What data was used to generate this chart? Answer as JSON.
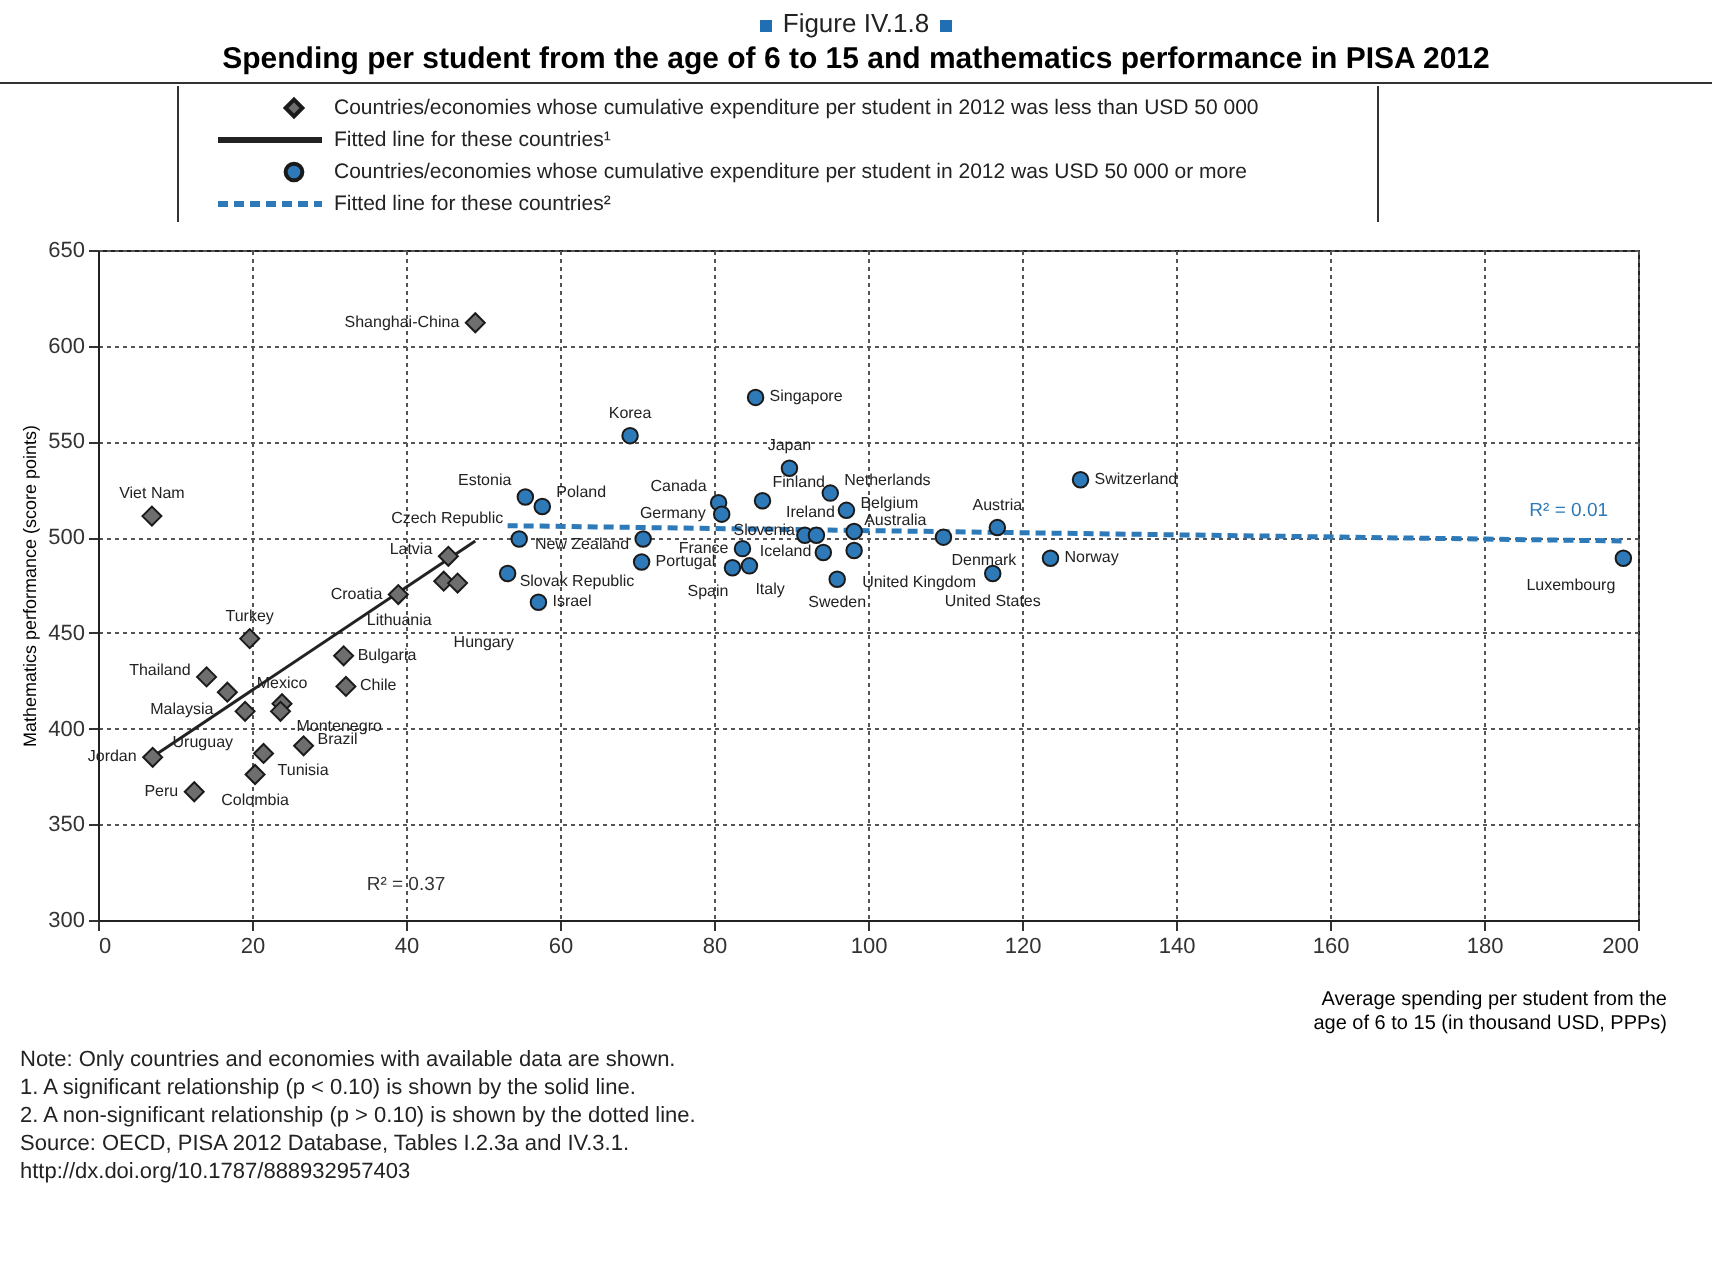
{
  "chart_data": {
    "type": "scatter",
    "subtitle": "Figure IV.1.8",
    "title": "Spending per student from the age of 6 to 15 and mathematics performance in PISA 2012",
    "xlabel": "Average spending per student from the age of 6 to 15 (in thousand USD, PPPs)",
    "ylabel": "Mathematics performance (score points)",
    "xlim": [
      0,
      200
    ],
    "xticks": [
      0,
      20,
      40,
      60,
      80,
      100,
      120,
      140,
      160,
      180,
      200
    ],
    "ylim": [
      300,
      650
    ],
    "yticks": [
      300,
      350,
      400,
      450,
      500,
      550,
      600,
      650
    ],
    "grid": true,
    "legend": "top",
    "series": [
      {
        "name": "Countries/economies whose cumulative expenditure per student in 2012 was less than USD 50 000",
        "marker": "diamond",
        "color": "#6e6e6e",
        "x": [
          49,
          7,
          45.5,
          39,
          44.9,
          46.7,
          19.7,
          31.9,
          32.2,
          14.1,
          16.8,
          19.1,
          23.9,
          23.7,
          7.1,
          26.7,
          21.5,
          20.4,
          12.5
        ],
        "values": [
          612,
          511,
          490,
          470,
          477,
          476,
          447,
          438,
          422,
          427,
          419,
          409,
          413,
          409,
          385,
          391,
          387,
          376,
          367
        ],
        "value_labels": [
          "Shanghai-China",
          "Viet Nam",
          "Latvia",
          "Croatia",
          "Lithuania",
          "Hungary",
          "Turkey",
          "Bulgaria",
          "Chile",
          "Thailand",
          "Malaysia",
          "Uruguay",
          "Mexico",
          "Montenegro",
          "Jordan",
          "Brazil",
          "Tunisia",
          "Colombia",
          "Peru"
        ]
      },
      {
        "name": "Fitted line for these countries¹",
        "type": "line",
        "line_style": "solid",
        "color": "#222222",
        "x": [
          7,
          49
        ],
        "values": [
          385,
          498
        ]
      },
      {
        "name": "Countries/economies whose cumulative expenditure per student in 2012 was USD 50 000 or more",
        "marker": "circle",
        "color": "#2e7ab8",
        "x": [
          54.7,
          55.5,
          57.7,
          53.2,
          57.2,
          70.6,
          70.8,
          69.1,
          85.4,
          89.8,
          86.3,
          80.6,
          81,
          95.1,
          97.2,
          116.8,
          127.6,
          109.8,
          123.7,
          116.2,
          198.1,
          83.7,
          82.4,
          84.6,
          91.8,
          93.3,
          94.2,
          96,
          98.2,
          98.2
        ],
        "values": [
          499,
          521,
          516,
          481,
          466,
          487,
          499,
          553,
          573,
          536,
          519,
          518,
          512,
          523,
          514,
          505,
          530,
          500,
          489,
          481,
          489,
          494,
          484,
          485,
          501,
          501,
          492,
          478,
          503,
          493
        ],
        "value_labels": [
          "Czech Republic",
          "Estonia",
          "Poland",
          "Slovak Republic",
          "Israel",
          "Portugal",
          "New Zealand",
          "Korea",
          "Singapore",
          "Japan",
          "Finland",
          "Canada",
          "Germany",
          "Netherlands",
          "Belgium",
          "Austria",
          "Switzerland",
          "Denmark",
          "Norway",
          "United States",
          "Luxembourg",
          "France",
          "Spain",
          "Italy",
          "Slovenia",
          "Ireland",
          "Iceland",
          "Sweden",
          "Australia",
          "United Kingdom"
        ]
      },
      {
        "name": "Fitted line for these countries²",
        "type": "line",
        "line_style": "dashed",
        "color": "#2e7ab8",
        "x": [
          53.2,
          198
        ],
        "values": [
          506,
          498
        ]
      }
    ],
    "annotations": [
      "R² = 0.37",
      "R² = 0.01",
      "Note: Only countries and economies with available data are shown.",
      "1. A significant relationship (p < 0.10) is shown by the solid line.",
      "2. A non-significant relationship (p > 0.10) is shown by the dotted line.",
      "Source: OECD, PISA 2012 Database, Tables I.2.3a and IV.3.1.",
      "http://dx.doi.org/10.1787/888932957403"
    ]
  }
}
